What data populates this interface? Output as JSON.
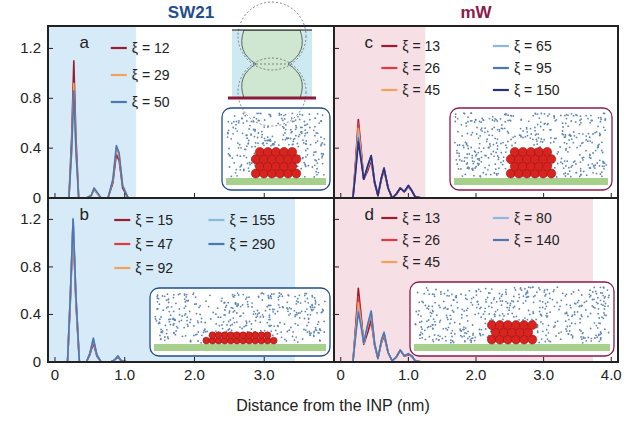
{
  "columns": [
    {
      "title": "SW21",
      "color": "#1f4e8c"
    },
    {
      "title": "mW",
      "color": "#8b1a4a"
    }
  ],
  "xlabel": "Distance from the INP (nm)",
  "chart_data": [
    {
      "type": "line",
      "panel": "a",
      "xlim": [
        -0.1,
        4.0
      ],
      "ylim": [
        0,
        1.38
      ],
      "xticks": [
        0,
        1,
        2,
        3
      ],
      "yticks": [
        0,
        0.4,
        0.8,
        1.2
      ],
      "tick_labels": "y",
      "legend": "top",
      "shaded_xlim": [
        -0.1,
        1.16
      ],
      "x": [
        0,
        0.2,
        0.24,
        0.27,
        0.3,
        0.34,
        0.45,
        0.52,
        0.56,
        0.6,
        0.66,
        0.76,
        0.83,
        0.88,
        0.92,
        0.97,
        1.05,
        1.2,
        4.0
      ],
      "series": [
        {
          "name": "ξ = 12",
          "color": "#9b1b30",
          "values": [
            0,
            0,
            0.5,
            1.1,
            0.5,
            0,
            0,
            0.02,
            0.07,
            0.04,
            0,
            0,
            0.12,
            0.35,
            0.3,
            0.08,
            0,
            0,
            0
          ]
        },
        {
          "name": "ξ = 29",
          "color": "#f4a259",
          "values": [
            0,
            0,
            0.4,
            0.92,
            0.4,
            0,
            0,
            0.02,
            0.08,
            0.04,
            0,
            0,
            0.14,
            0.4,
            0.34,
            0.1,
            0,
            0,
            0
          ]
        },
        {
          "name": "ξ = 50",
          "color": "#4a78b5",
          "values": [
            0,
            0,
            0.38,
            0.86,
            0.38,
            0,
            0,
            0.02,
            0.08,
            0.05,
            0,
            0,
            0.15,
            0.42,
            0.36,
            0.1,
            0,
            0,
            0
          ]
        }
      ]
    },
    {
      "type": "line",
      "panel": "b",
      "xlim": [
        -0.1,
        4.0
      ],
      "ylim": [
        0,
        1.38
      ],
      "xticks": [
        0,
        {
          "value": 1,
          "label": "1.0"
        },
        {
          "value": 2,
          "label": "2.0"
        },
        {
          "value": 3,
          "label": "3.0"
        }
      ],
      "yticks": [
        0,
        0.4,
        0.8,
        1.2
      ],
      "tick_labels": true,
      "legend": "top",
      "shaded_xlim": [
        -0.1,
        3.44
      ],
      "x": [
        0,
        0.18,
        0.22,
        0.26,
        0.3,
        0.35,
        0.45,
        0.5,
        0.55,
        0.6,
        0.66,
        0.8,
        0.86,
        0.9,
        0.95,
        1.05,
        4.0
      ],
      "series": [
        {
          "name": "ξ = 15",
          "color": "#9b1b30",
          "values": [
            0,
            0,
            0.5,
            1.15,
            0.5,
            0,
            0,
            0.06,
            0.16,
            0.05,
            0,
            0,
            0.02,
            0.04,
            0.01,
            0,
            0
          ]
        },
        {
          "name": "ξ = 47",
          "color": "#e03a3e",
          "values": [
            0,
            0,
            0.55,
            1.2,
            0.55,
            0,
            0,
            0.07,
            0.18,
            0.06,
            0,
            0,
            0.02,
            0.05,
            0.01,
            0,
            0
          ]
        },
        {
          "name": "ξ = 92",
          "color": "#f4a259",
          "values": [
            0,
            0,
            0.54,
            1.18,
            0.54,
            0,
            0,
            0.07,
            0.19,
            0.06,
            0,
            0,
            0.02,
            0.05,
            0.01,
            0,
            0
          ]
        },
        {
          "name": "ξ = 155",
          "color": "#8bb8e0",
          "values": [
            0,
            0,
            0.56,
            1.21,
            0.56,
            0,
            0,
            0.07,
            0.2,
            0.06,
            0,
            0,
            0.02,
            0.05,
            0.01,
            0,
            0
          ]
        },
        {
          "name": "ξ = 290",
          "color": "#4a78b5",
          "values": [
            0,
            0,
            0.56,
            1.2,
            0.56,
            0,
            0,
            0.07,
            0.2,
            0.06,
            0,
            0,
            0.02,
            0.05,
            0.01,
            0,
            0
          ]
        }
      ]
    },
    {
      "type": "line",
      "panel": "c",
      "xlim": [
        -0.1,
        4.1
      ],
      "ylim": [
        0,
        1.38
      ],
      "xticks": [
        0,
        1,
        2,
        3,
        4
      ],
      "yticks": [
        0,
        0.4,
        0.8,
        1.2
      ],
      "tick_labels": false,
      "legend": "top",
      "shaded_xlim": [
        -0.1,
        1.25
      ],
      "x": [
        0,
        0.18,
        0.22,
        0.26,
        0.3,
        0.34,
        0.4,
        0.45,
        0.5,
        0.55,
        0.6,
        0.64,
        0.7,
        0.76,
        0.82,
        0.88,
        0.94,
        1.0,
        1.05,
        1.1,
        1.2,
        4.0
      ],
      "series": [
        {
          "name": "ξ = 13",
          "color": "#9b1b30",
          "values": [
            0,
            0,
            0.3,
            0.63,
            0.4,
            0.15,
            0.22,
            0.3,
            0.12,
            0.02,
            0.15,
            0.22,
            0.08,
            0,
            0.03,
            0.08,
            0.05,
            0.09,
            0.06,
            0.01,
            0,
            0
          ]
        },
        {
          "name": "ξ = 26",
          "color": "#e03a3e",
          "values": [
            0,
            0,
            0.28,
            0.6,
            0.38,
            0.15,
            0.24,
            0.32,
            0.12,
            0.02,
            0.15,
            0.23,
            0.08,
            0,
            0.03,
            0.08,
            0.05,
            0.09,
            0.06,
            0.01,
            0,
            0
          ]
        },
        {
          "name": "ξ = 45",
          "color": "#f4a259",
          "values": [
            0,
            0,
            0.26,
            0.56,
            0.36,
            0.15,
            0.25,
            0.33,
            0.13,
            0.02,
            0.16,
            0.23,
            0.08,
            0,
            0.03,
            0.08,
            0.05,
            0.1,
            0.06,
            0.01,
            0,
            0
          ]
        },
        {
          "name": "ξ = 65",
          "color": "#8bb8e0",
          "values": [
            0,
            0,
            0.24,
            0.52,
            0.34,
            0.15,
            0.25,
            0.33,
            0.13,
            0.02,
            0.16,
            0.24,
            0.08,
            0,
            0.03,
            0.08,
            0.05,
            0.1,
            0.06,
            0.01,
            0,
            0
          ]
        },
        {
          "name": "ξ = 95",
          "color": "#4a78b5",
          "values": [
            0,
            0,
            0.22,
            0.48,
            0.32,
            0.15,
            0.26,
            0.34,
            0.13,
            0.02,
            0.16,
            0.24,
            0.08,
            0,
            0.03,
            0.08,
            0.05,
            0.1,
            0.06,
            0.01,
            0,
            0
          ]
        },
        {
          "name": "ξ = 150",
          "color": "#2b2f7e",
          "values": [
            0,
            0,
            0.21,
            0.45,
            0.3,
            0.15,
            0.26,
            0.34,
            0.13,
            0.02,
            0.16,
            0.24,
            0.08,
            0,
            0.03,
            0.08,
            0.05,
            0.1,
            0.06,
            0.01,
            0,
            0
          ]
        }
      ]
    },
    {
      "type": "line",
      "panel": "d",
      "xlim": [
        -0.1,
        4.1
      ],
      "ylim": [
        0,
        1.38
      ],
      "xticks": [
        0,
        {
          "value": 1,
          "label": "1.0"
        },
        {
          "value": 2,
          "label": "2.0"
        },
        {
          "value": 3,
          "label": "3.0"
        },
        {
          "value": 4,
          "label": "4.0"
        }
      ],
      "yticks": [
        0,
        0.4,
        0.8,
        1.2
      ],
      "tick_labels": "x",
      "legend": "top",
      "shaded_xlim": [
        -0.1,
        3.73
      ],
      "x": [
        0,
        0.18,
        0.22,
        0.26,
        0.3,
        0.34,
        0.4,
        0.45,
        0.5,
        0.55,
        0.6,
        0.64,
        0.7,
        0.76,
        0.82,
        0.88,
        0.94,
        1.0,
        1.05,
        1.1,
        1.2,
        4.0
      ],
      "series": [
        {
          "name": "ξ = 13",
          "color": "#9b1b30",
          "values": [
            0,
            0,
            0.3,
            0.62,
            0.4,
            0.15,
            0.25,
            0.35,
            0.14,
            0.03,
            0.16,
            0.22,
            0.08,
            0.01,
            0.04,
            0.1,
            0.05,
            0.06,
            0.05,
            0.01,
            0,
            0
          ]
        },
        {
          "name": "ξ = 26",
          "color": "#e03a3e",
          "values": [
            0,
            0,
            0.27,
            0.55,
            0.37,
            0.16,
            0.3,
            0.4,
            0.15,
            0.03,
            0.17,
            0.24,
            0.08,
            0.01,
            0.04,
            0.1,
            0.05,
            0.06,
            0.05,
            0.01,
            0,
            0
          ]
        },
        {
          "name": "ξ = 45",
          "color": "#f4a259",
          "values": [
            0,
            0,
            0.25,
            0.5,
            0.34,
            0.16,
            0.31,
            0.41,
            0.15,
            0.03,
            0.17,
            0.24,
            0.08,
            0.01,
            0.04,
            0.1,
            0.05,
            0.07,
            0.05,
            0.01,
            0,
            0
          ]
        },
        {
          "name": "ξ = 80",
          "color": "#8bb8e0",
          "values": [
            0,
            0,
            0.23,
            0.45,
            0.31,
            0.16,
            0.32,
            0.42,
            0.16,
            0.03,
            0.18,
            0.25,
            0.08,
            0.01,
            0.04,
            0.1,
            0.05,
            0.07,
            0.05,
            0.01,
            0,
            0
          ]
        },
        {
          "name": "ξ = 140",
          "color": "#4a78b5",
          "values": [
            0,
            0,
            0.22,
            0.42,
            0.3,
            0.16,
            0.32,
            0.43,
            0.16,
            0.03,
            0.18,
            0.25,
            0.08,
            0.01,
            0.04,
            0.1,
            0.05,
            0.07,
            0.05,
            0.01,
            0,
            0
          ]
        }
      ]
    }
  ]
}
